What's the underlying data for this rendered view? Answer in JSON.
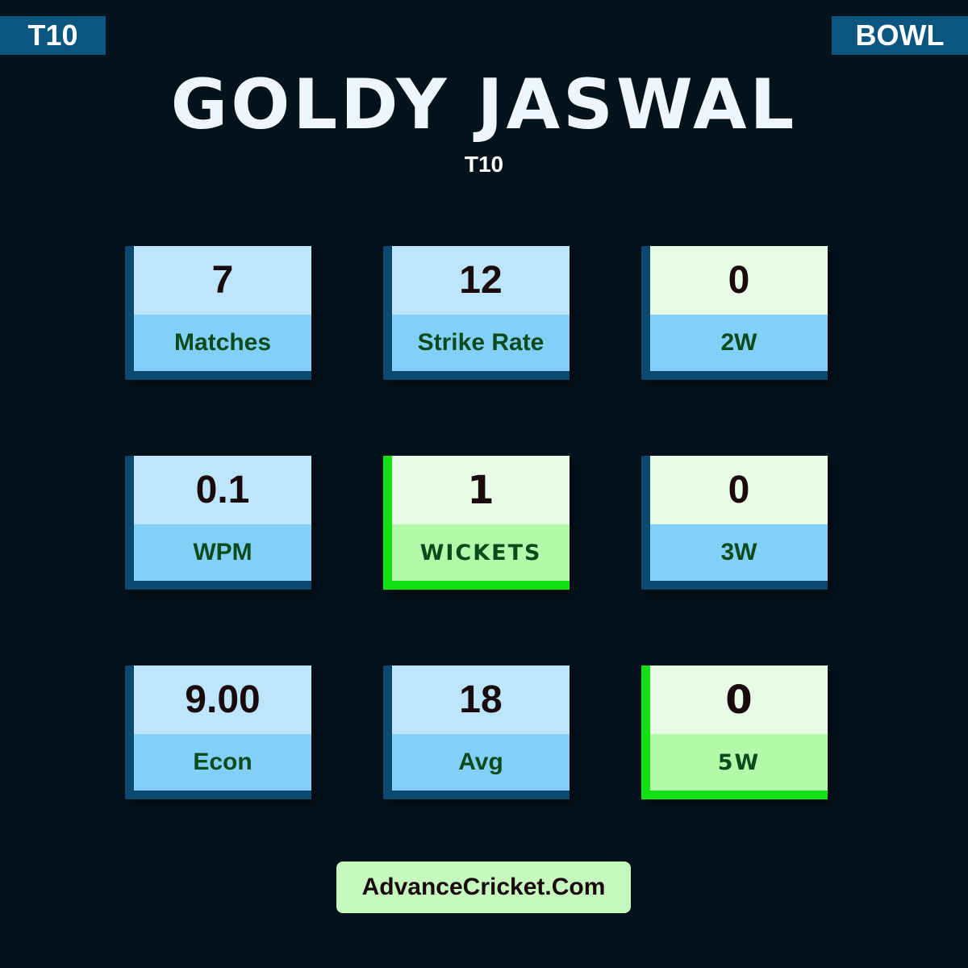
{
  "badges": {
    "format": "T10",
    "role": "BOWL"
  },
  "player": {
    "name": "GOLDY JASWAL",
    "format": "T10"
  },
  "stats": [
    {
      "value": "7",
      "label": "Matches",
      "style": "blue"
    },
    {
      "value": "12",
      "label": "Strike Rate",
      "style": "blue"
    },
    {
      "value": "0",
      "label": "2W",
      "style": "greentop"
    },
    {
      "value": "0.1",
      "label": "WPM",
      "style": "blue"
    },
    {
      "value": "1",
      "label": "WICKETS",
      "style": "green"
    },
    {
      "value": "0",
      "label": "3W",
      "style": "greentop"
    },
    {
      "value": "9.00",
      "label": "Econ",
      "style": "blue"
    },
    {
      "value": "18",
      "label": "Avg",
      "style": "blue"
    },
    {
      "value": "0",
      "label": "5W",
      "style": "green"
    }
  ],
  "footer": {
    "link": "AdvanceCricket.Com"
  },
  "colors": {
    "background": "#04121c",
    "badge": "#0b5680",
    "highlight": "#12e012"
  }
}
